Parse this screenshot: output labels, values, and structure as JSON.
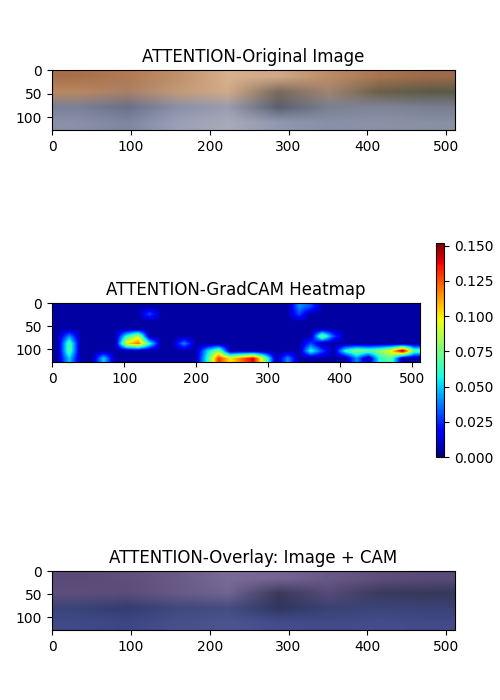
{
  "chart_data": [
    {
      "type": "image",
      "title": "ATTENTION-Original Image",
      "xlim": [
        -0.5,
        511.5
      ],
      "ylim": [
        127.5,
        -0.5
      ],
      "xticks": [
        0,
        100,
        200,
        300,
        400,
        500
      ],
      "yticks": [
        0,
        50,
        100
      ],
      "cells": [
        [
          "#a8704a",
          "#b07a52",
          "#c0906a",
          "#d8b08c",
          "#d0a888",
          "#bc8c66",
          "#a87450",
          "#9c6a48"
        ],
        [
          "#b88860",
          "#a88068",
          "#c09a78",
          "#d0aa88",
          "#7a6a5a",
          "#a08470",
          "#6a6048",
          "#5a5a48"
        ],
        [
          "#7a8098",
          "#6a7088",
          "#8a90a8",
          "#9a9cb0",
          "#5a6070",
          "#7a8090",
          "#808498",
          "#7a7e90"
        ],
        [
          "#8a90a8",
          "#7e86a0",
          "#9aa0b8",
          "#a8aab8",
          "#9098b0",
          "#8890a8",
          "#8a90a8",
          "#8890a4"
        ]
      ]
    },
    {
      "type": "heatmap",
      "title": "ATTENTION-GradCAM Heatmap",
      "color": "jet",
      "xlim": [
        -0.5,
        511.5
      ],
      "ylim": [
        127.5,
        -0.5
      ],
      "xticks": [
        0,
        100,
        200,
        300,
        400,
        500
      ],
      "yticks": [
        0,
        50,
        100
      ],
      "colorbar_range": [
        0,
        0.152
      ],
      "colorbar_ticks": [
        {
          "value": 0,
          "label": "0.000"
        },
        {
          "value": 0.025,
          "label": "0.025"
        },
        {
          "value": 0.05,
          "label": "0.050"
        },
        {
          "value": 0.075,
          "label": "0.075"
        },
        {
          "value": 0.1,
          "label": "0.100"
        },
        {
          "value": 0.125,
          "label": "0.125"
        },
        {
          "value": 0.15,
          "label": "0.150"
        }
      ],
      "cells": [
        [
          0.005,
          0.005,
          0.005,
          0.005,
          0.005,
          0.005,
          0.005,
          0.005,
          0.005,
          0.005,
          0.005,
          0.005,
          0.005,
          0.005,
          0.005,
          0.005,
          0.005,
          0.005,
          0.005,
          0.005,
          0.005,
          0.04,
          0.03,
          0.005,
          0.005,
          0.005,
          0.005,
          0.005,
          0.005,
          0.005,
          0.005,
          0.005
        ],
        [
          0.005,
          0.005,
          0.005,
          0.005,
          0.005,
          0.005,
          0.005,
          0.005,
          0.03,
          0.005,
          0.005,
          0.005,
          0.005,
          0.005,
          0.005,
          0.005,
          0.005,
          0.005,
          0.005,
          0.005,
          0.005,
          0.03,
          0.005,
          0.005,
          0.005,
          0.005,
          0.005,
          0.005,
          0.005,
          0.005,
          0.005,
          0.005
        ],
        [
          0.005,
          0.005,
          0.005,
          0.005,
          0.005,
          0.005,
          0.005,
          0.005,
          0.005,
          0.005,
          0.005,
          0.005,
          0.005,
          0.005,
          0.005,
          0.005,
          0.005,
          0.005,
          0.005,
          0.005,
          0.005,
          0.005,
          0.005,
          0.005,
          0.005,
          0.005,
          0.005,
          0.005,
          0.005,
          0.005,
          0.005,
          0.005
        ],
        [
          0.005,
          0.005,
          0.005,
          0.005,
          0.005,
          0.005,
          0.005,
          0.005,
          0.005,
          0.005,
          0.005,
          0.005,
          0.005,
          0.005,
          0.005,
          0.005,
          0.005,
          0.005,
          0.005,
          0.005,
          0.005,
          0.005,
          0.005,
          0.005,
          0.005,
          0.005,
          0.005,
          0.005,
          0.005,
          0.005,
          0.005,
          0.005
        ],
        [
          0.005,
          0.04,
          0.005,
          0.005,
          0.005,
          0.005,
          0.06,
          0.09,
          0.005,
          0.005,
          0.005,
          0.005,
          0.005,
          0.005,
          0.005,
          0.005,
          0.005,
          0.005,
          0.005,
          0.005,
          0.005,
          0.005,
          0.005,
          0.08,
          0.03,
          0.005,
          0.005,
          0.005,
          0.005,
          0.005,
          0.005,
          0.005
        ],
        [
          0.005,
          0.07,
          0.005,
          0.005,
          0.005,
          0.005,
          0.1,
          0.12,
          0.06,
          0.005,
          0.005,
          0.04,
          0.005,
          0.005,
          0.005,
          0.005,
          0.005,
          0.005,
          0.005,
          0.005,
          0.005,
          0.005,
          0.03,
          0.005,
          0.005,
          0.005,
          0.005,
          0.005,
          0.005,
          0.005,
          0.005,
          0.005
        ],
        [
          0.005,
          0.07,
          0.005,
          0.005,
          0.005,
          0.005,
          0.005,
          0.005,
          0.005,
          0.005,
          0.005,
          0.005,
          0.005,
          0.05,
          0.08,
          0.005,
          0.005,
          0.005,
          0.005,
          0.005,
          0.005,
          0.005,
          0.06,
          0.03,
          0.005,
          0.06,
          0.08,
          0.07,
          0.08,
          0.1,
          0.15,
          0.07
        ],
        [
          0.005,
          0.05,
          0.005,
          0.005,
          0.05,
          0.005,
          0.005,
          0.005,
          0.005,
          0.005,
          0.005,
          0.005,
          0.005,
          0.06,
          0.13,
          0.1,
          0.12,
          0.14,
          0.08,
          0.005,
          0.04,
          0.005,
          0.005,
          0.005,
          0.005,
          0.005,
          0.04,
          0.005,
          0.06,
          0.07,
          0.005,
          0.005
        ]
      ]
    },
    {
      "type": "overlay",
      "title": "ATTENTION-Overlay: Image + CAM",
      "xlim": [
        -0.5,
        511.5
      ],
      "ylim": [
        127.5,
        -0.5
      ],
      "xticks": [
        0,
        100,
        200,
        300,
        400,
        500
      ],
      "yticks": [
        0,
        50,
        100
      ],
      "cells": [
        [
          "#5a4a78",
          "#604e7c",
          "#6a5a88",
          "#7a6a98",
          "#766494",
          "#685888",
          "#5e4e7c",
          "#584a78"
        ],
        [
          "#5e4e7c",
          "#5a4c7c",
          "#665a88",
          "#706494",
          "#3a3a5a",
          "#564a78",
          "#3a3a5c",
          "#36385a"
        ],
        [
          "#3a4478",
          "#343c70",
          "#40487c",
          "#464c80",
          "#303660",
          "#3a4274",
          "#3c4478",
          "#3a4276"
        ],
        [
          "#404a88",
          "#3c4684",
          "#48508c",
          "#4c5490",
          "#444c8c",
          "#424a88",
          "#444c8c",
          "#424a88"
        ]
      ]
    }
  ]
}
